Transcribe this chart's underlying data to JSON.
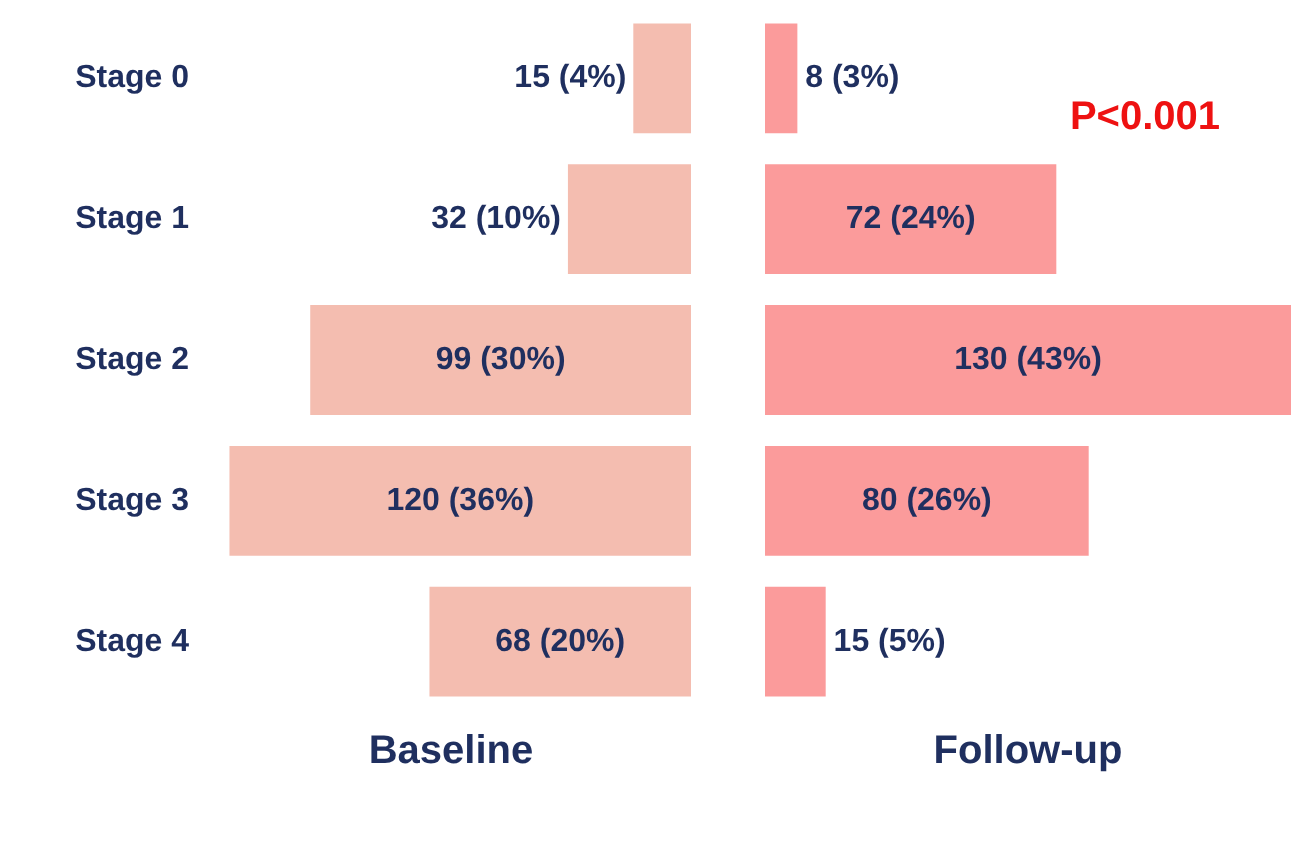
{
  "chart_data": [
    {
      "type": "bar",
      "orientation": "horizontal",
      "xlabel": "Baseline",
      "categories": [
        "Stage 0",
        "Stage 1",
        "Stage 2",
        "Stage 3",
        "Stage 4"
      ],
      "series": [
        {
          "color": "#f4bdb0",
          "values": [
            15,
            32,
            99,
            120,
            68
          ],
          "value_labels": [
            "15 (4%)",
            "32 (10%)",
            "99 (30%)",
            "120 (36%)",
            "68 (20%)"
          ]
        }
      ]
    },
    {
      "type": "bar",
      "orientation": "horizontal",
      "xlabel": "Follow-up",
      "categories": [
        null,
        null,
        null,
        null,
        null
      ],
      "series": [
        {
          "color": "#fb9b9b",
          "values": [
            8,
            72,
            130,
            80,
            15
          ],
          "value_labels": [
            "8 (3%)",
            "72 (24%)",
            "130 (43%)",
            "80 (26%)",
            "15 (5%)"
          ]
        }
      ],
      "annotations": [
        "P<0.001"
      ]
    }
  ]
}
